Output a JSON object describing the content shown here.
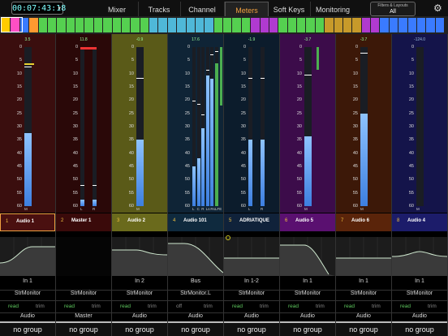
{
  "timecode": "00:07:43:18",
  "tabs": [
    {
      "label": "Mixer",
      "active": false
    },
    {
      "label": "Tracks",
      "active": false
    },
    {
      "label": "Channel",
      "active": false
    },
    {
      "label": "Meters",
      "active": true
    },
    {
      "label": "Soft Keys",
      "active": false
    },
    {
      "label": "Monitoring",
      "active": false
    }
  ],
  "filters": {
    "title": "Filters & Layouts",
    "value": "All"
  },
  "icons": {
    "settings": "gear-icon"
  },
  "strip_colors": [
    "#ffcc00",
    "#ff4fc4",
    "#3a7bff",
    "#ff9930",
    "#55d050",
    "#55d050",
    "#55d050",
    "#55d050",
    "#55d050",
    "#55d050",
    "#55d050",
    "#55d050",
    "#55d050",
    "#55d050",
    "#55d050",
    "#55d050",
    "#4fb8d8",
    "#4fb8d8",
    "#4fb8d8",
    "#4fb8d8",
    "#4fb8d8",
    "#4fb8d8",
    "#4fb8d8",
    "#55d050",
    "#55d050",
    "#55d050",
    "#55d050",
    "#b03ad0",
    "#b03ad0",
    "#b03ad0",
    "#55d050",
    "#55d050",
    "#55d050",
    "#55d050",
    "#55d050",
    "#c79a2a",
    "#c79a2a",
    "#c79a2a",
    "#c79a2a",
    "#b03ad0",
    "#b03ad0",
    "#3a7bff",
    "#3a7bff",
    "#3a7bff",
    "#3a7bff",
    "#3a7bff",
    "#3a7bff",
    "#3a7bff"
  ],
  "scale": [
    "0",
    "5",
    "10",
    "15",
    "20",
    "25",
    "30",
    "35",
    "40",
    "45",
    "50",
    "55",
    "60"
  ],
  "channels": [
    {
      "num": "1",
      "name": "Audio 1",
      "color": "#3a0e0e",
      "bar": "#4a1010",
      "level": "3.5",
      "meters": [
        {
          "label": "M",
          "fill": 0.46,
          "peak": 0.87
        }
      ],
      "insert": "In 1",
      "output": "StrMonitor",
      "mode": "read",
      "mode_on": true,
      "trim": "trim",
      "type": "Audio",
      "group": "no group",
      "selected": true
    },
    {
      "num": "2",
      "name": "Master 1",
      "color": "#2a0808",
      "bar": "#3a0a0a",
      "level": "11.8",
      "meters": [
        {
          "label": "L",
          "fill": 0.04,
          "peak": 0.13
        },
        {
          "label": "R",
          "fill": 0.04,
          "peak": 0.13
        }
      ],
      "insert": "",
      "output": "StrMonitor",
      "mode": "read",
      "mode_on": true,
      "trim": "trim",
      "type": "Master",
      "group": "no group",
      "selected": false
    },
    {
      "num": "3",
      "name": "Audio 2",
      "color": "#5a5a18",
      "bar": "#6a6a1c",
      "level": "-0.9",
      "meters": [
        {
          "label": "M",
          "fill": 0.42,
          "peak": 0.8
        }
      ],
      "insert": "In 2",
      "output": "StrMonitor",
      "mode": "read",
      "mode_on": true,
      "trim": "trim",
      "type": "Audio",
      "group": "no group",
      "selected": false
    },
    {
      "num": "4",
      "name": "Audio 101",
      "color": "#0f2436",
      "bar": "#0f2a3e",
      "level": "17.6",
      "meters": [
        {
          "label": "L",
          "fill": 0.25,
          "peak": 0.66
        },
        {
          "label": "C",
          "fill": 0.3,
          "peak": 0.64
        },
        {
          "label": "R",
          "fill": 0.49,
          "peak": 0.57
        },
        {
          "label": "Ls",
          "fill": 0.82,
          "peak": 0.85
        },
        {
          "label": "Rs",
          "fill": 0.8,
          "peak": 0.95
        },
        {
          "label": "LFE",
          "fill": 0.9,
          "peak": 0.97
        }
      ],
      "insert": "Bus",
      "output": "StrMonitor.L",
      "mode": "off",
      "mode_on": false,
      "trim": "trim",
      "type": "Audio",
      "group": "no group",
      "selected": false
    },
    {
      "num": "5",
      "name": "ADRIATIQUE",
      "color": "#0c1c2c",
      "bar": "#10223a",
      "level": "-1.9",
      "meters": [
        {
          "label": "L",
          "fill": 0.42,
          "peak": 0.8
        },
        {
          "label": "R",
          "fill": 0.42,
          "peak": 0.8
        }
      ],
      "insert": "In 1-2",
      "output": "StrMonitor",
      "mode": "read",
      "mode_on": true,
      "trim": "trim",
      "type": "Audio",
      "group": "no group",
      "selected": false
    },
    {
      "num": "6",
      "name": "Audio 5",
      "color": "#3c0c4a",
      "bar": "#5a1070",
      "level": "-3.7",
      "meters": [
        {
          "label": "M",
          "fill": 0.44,
          "peak": 0.82
        }
      ],
      "insert": "In 1",
      "output": "StrMonitor",
      "mode": "read",
      "mode_on": true,
      "trim": "trim",
      "type": "Audio",
      "group": "no group",
      "selected": false
    },
    {
      "num": "7",
      "name": "Audio 6",
      "color": "#3c1808",
      "bar": "#5a240a",
      "level": "-3.7",
      "meters": [
        {
          "label": "M",
          "fill": 0.58,
          "peak": 0.96
        }
      ],
      "insert": "In 1",
      "output": "StrMonitor",
      "mode": "read",
      "mode_on": true,
      "trim": "trim",
      "type": "Audio",
      "group": "no group",
      "selected": false
    },
    {
      "num": "8",
      "name": "Audio 4",
      "color": "#14144a",
      "bar": "#1c1c6a",
      "level": "-124.0",
      "meters": [
        {
          "label": "M",
          "fill": 0.0,
          "peak": 0.0
        }
      ],
      "insert": "In 1",
      "output": "StrMonitor",
      "mode": "read",
      "mode_on": true,
      "trim": "trim",
      "type": "Audio",
      "group": "no group",
      "selected": false
    }
  ]
}
